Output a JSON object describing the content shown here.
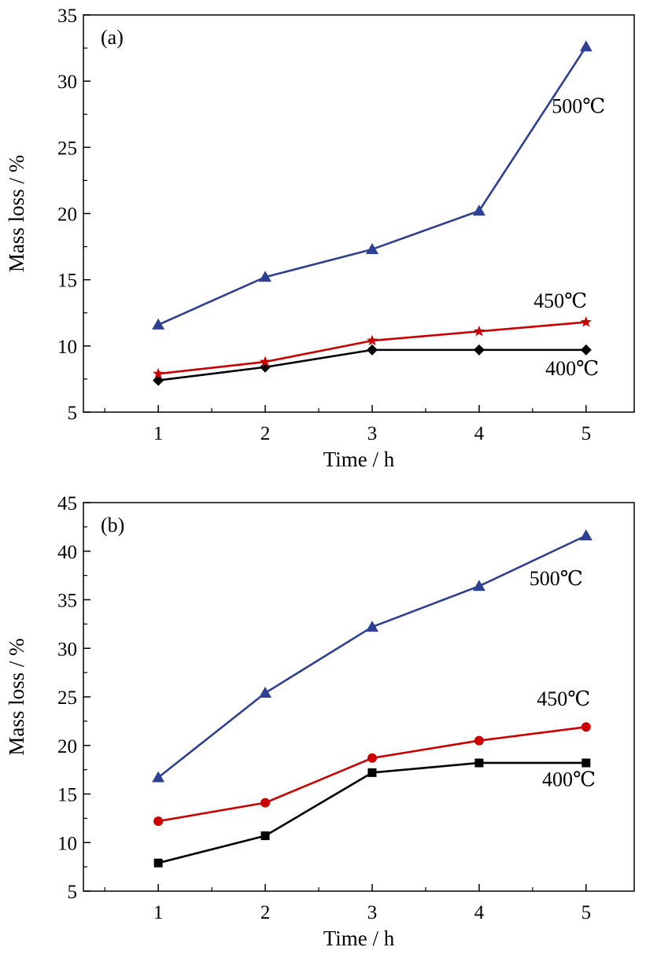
{
  "chart_data": [
    {
      "type": "line",
      "panel_label": "(a)",
      "xlabel": "Time / h",
      "ylabel": "Mass loss / %",
      "xlim": [
        0.3,
        5.45
      ],
      "ylim": [
        5,
        35
      ],
      "xticks": [
        1,
        2,
        3,
        4,
        5
      ],
      "yticks": [
        5,
        10,
        15,
        20,
        25,
        30,
        35
      ],
      "grid": false,
      "x": [
        1,
        2,
        3,
        4,
        5
      ],
      "series": [
        {
          "name": "400℃",
          "color": "#000000",
          "marker": "diamond",
          "values": [
            7.4,
            8.4,
            9.7,
            9.7,
            9.7
          ]
        },
        {
          "name": "450℃",
          "color": "#cc0000",
          "marker": "star",
          "values": [
            7.9,
            8.8,
            10.4,
            11.1,
            11.8
          ]
        },
        {
          "name": "500℃",
          "color": "#2e3f96",
          "marker": "triangle",
          "values": [
            11.6,
            15.2,
            17.3,
            20.2,
            32.6
          ]
        }
      ]
    },
    {
      "type": "line",
      "panel_label": "(b)",
      "xlabel": "Time / h",
      "ylabel": "Mass loss / %",
      "xlim": [
        0.3,
        5.45
      ],
      "ylim": [
        5,
        45
      ],
      "xticks": [
        1,
        2,
        3,
        4,
        5
      ],
      "yticks": [
        5,
        10,
        15,
        20,
        25,
        30,
        35,
        40,
        45
      ],
      "grid": false,
      "x": [
        1,
        2,
        3,
        4,
        5
      ],
      "series": [
        {
          "name": "400℃",
          "color": "#000000",
          "marker": "square",
          "values": [
            7.9,
            10.7,
            17.2,
            18.2,
            18.2
          ]
        },
        {
          "name": "450℃",
          "color": "#cc0000",
          "marker": "circle",
          "values": [
            12.2,
            14.1,
            18.7,
            20.5,
            21.9
          ]
        },
        {
          "name": "500℃",
          "color": "#2e3f96",
          "marker": "triangle",
          "values": [
            16.7,
            25.4,
            32.2,
            36.4,
            41.6
          ]
        }
      ]
    }
  ]
}
